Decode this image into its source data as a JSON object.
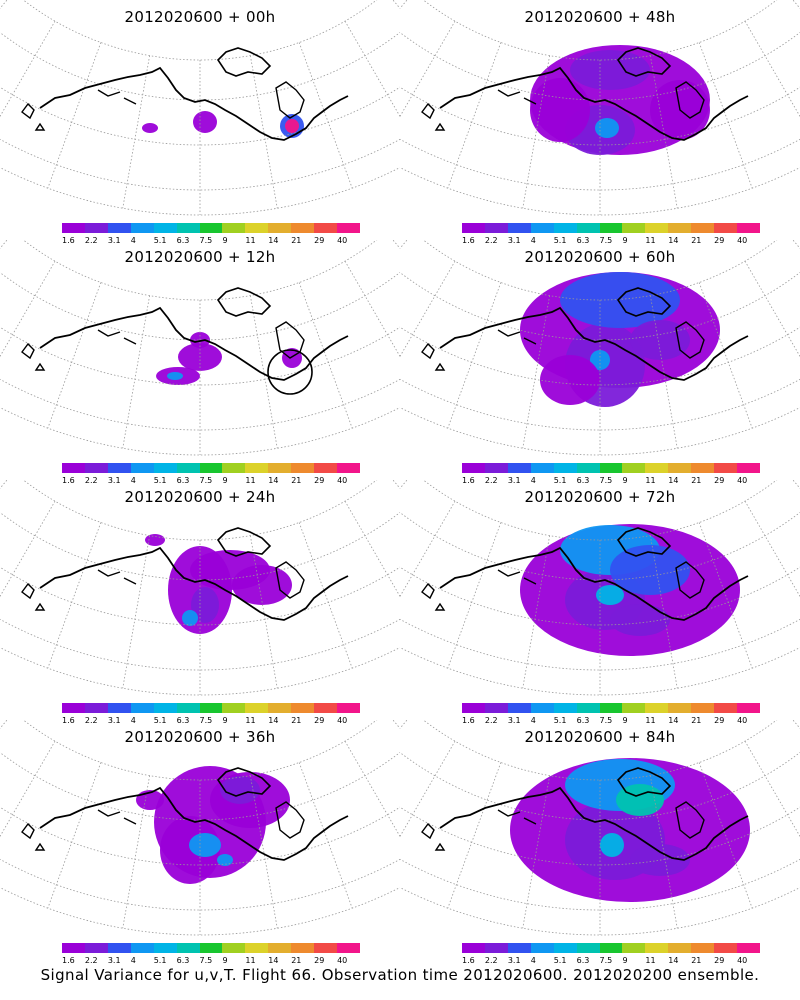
{
  "panels": [
    {
      "title": "2012020600 + 00h",
      "blobs": [
        [
          150,
          128,
          8,
          5,
          0
        ],
        [
          205,
          122,
          12,
          11,
          0
        ],
        [
          292,
          126,
          12,
          12,
          2
        ],
        [
          292,
          126,
          7,
          7,
          12
        ]
      ],
      "circle": null
    },
    {
      "title": "2012020600 + 12h",
      "blobs": [
        [
          200,
          357,
          22,
          14,
          0
        ],
        [
          178,
          376,
          22,
          9,
          0
        ],
        [
          175,
          376,
          8,
          4,
          3
        ],
        [
          200,
          340,
          10,
          8,
          0
        ],
        [
          292,
          358,
          10,
          10,
          0
        ]
      ],
      "circle": [
        290,
        372,
        22
      ]
    },
    {
      "title": "2012020600 + 24h",
      "blobs": [
        [
          200,
          590,
          32,
          44,
          0
        ],
        [
          230,
          570,
          40,
          20,
          0
        ],
        [
          205,
          605,
          14,
          18,
          1
        ],
        [
          190,
          618,
          8,
          8,
          3
        ],
        [
          262,
          585,
          30,
          20,
          0
        ],
        [
          155,
          540,
          10,
          6,
          0
        ]
      ],
      "circle": null
    },
    {
      "title": "2012020600 + 36h",
      "blobs": [
        [
          210,
          822,
          56,
          56,
          0
        ],
        [
          250,
          800,
          40,
          28,
          0
        ],
        [
          190,
          850,
          30,
          34,
          0
        ],
        [
          205,
          845,
          16,
          12,
          3
        ],
        [
          225,
          860,
          8,
          6,
          3
        ],
        [
          150,
          800,
          14,
          10,
          0
        ],
        [
          240,
          790,
          20,
          14,
          1
        ]
      ],
      "circle": null
    },
    {
      "title": "2012020600 + 48h",
      "blobs": [
        [
          620,
          100,
          90,
          55,
          0
        ],
        [
          600,
          130,
          35,
          25,
          1
        ],
        [
          607,
          128,
          12,
          10,
          3
        ],
        [
          560,
          110,
          30,
          32,
          0
        ],
        [
          680,
          110,
          30,
          30,
          0
        ],
        [
          610,
          70,
          40,
          20,
          1
        ]
      ],
      "circle": null
    },
    {
      "title": "2012020600 + 60h",
      "blobs": [
        [
          620,
          330,
          100,
          58,
          0
        ],
        [
          605,
          365,
          40,
          42,
          1
        ],
        [
          600,
          360,
          10,
          10,
          3
        ],
        [
          620,
          300,
          60,
          28,
          2
        ],
        [
          660,
          340,
          30,
          20,
          1
        ],
        [
          570,
          380,
          30,
          25,
          0
        ]
      ],
      "circle": null
    },
    {
      "title": "2012020600 + 72h",
      "blobs": [
        [
          630,
          590,
          110,
          66,
          0
        ],
        [
          605,
          600,
          40,
          30,
          1
        ],
        [
          610,
          595,
          14,
          10,
          4
        ],
        [
          610,
          550,
          50,
          25,
          3
        ],
        [
          650,
          570,
          40,
          25,
          2
        ],
        [
          640,
          620,
          30,
          16,
          1
        ]
      ],
      "circle": null
    },
    {
      "title": "2012020600 + 84h",
      "blobs": [
        [
          630,
          830,
          120,
          72,
          0
        ],
        [
          615,
          840,
          50,
          40,
          1
        ],
        [
          612,
          845,
          12,
          12,
          4
        ],
        [
          620,
          785,
          55,
          26,
          3
        ],
        [
          640,
          800,
          24,
          16,
          5
        ],
        [
          660,
          860,
          30,
          16,
          1
        ]
      ],
      "circle": null
    }
  ],
  "colorbar": {
    "colors": [
      "#9a00d8",
      "#7b1bd9",
      "#3152f0",
      "#0f97f2",
      "#00b4e6",
      "#00c3b0",
      "#18c62f",
      "#a0d020",
      "#dcd22a",
      "#e3ae2e",
      "#ee8a2e",
      "#f24a46",
      "#f2158a"
    ],
    "labels": [
      "1.6",
      "2.2",
      "3.1",
      "4",
      "5.1",
      "6.3",
      "7.5",
      "9",
      "11",
      "14",
      "21",
      "29",
      "40"
    ]
  },
  "footer": "Signal Variance for u,v,T. Flight 66. Observation time 2012020600. 2012020200 ensemble."
}
